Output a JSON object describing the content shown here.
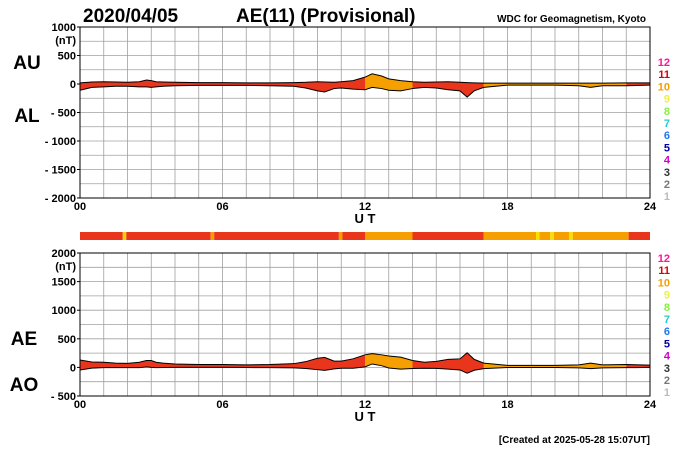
{
  "header": {
    "date": "2020/04/05",
    "title": "AE(11) (Provisional)",
    "source": "WDC for Geomagnetism, Kyoto"
  },
  "footer": {
    "created": "[Created at 2025-05-28 15:07UT]"
  },
  "legend": {
    "labels": [
      "12",
      "11",
      "10",
      "9",
      "8",
      "7",
      "6",
      "5",
      "4",
      "3",
      "2",
      "1"
    ],
    "colors": [
      "#ff1493",
      "#e00000",
      "#f5a000",
      "#eeee44",
      "#88ee44",
      "#22cccc",
      "#2277ee",
      "#0000aa",
      "#cc00cc",
      "#333333",
      "#777777",
      "#bbbbbb"
    ]
  },
  "status_bar": {
    "segments": [
      {
        "from": 0,
        "to": 1.8,
        "color": "#e8351b"
      },
      {
        "from": 1.8,
        "to": 1.95,
        "color": "#f5d000"
      },
      {
        "from": 1.95,
        "to": 5.5,
        "color": "#e8351b"
      },
      {
        "from": 5.5,
        "to": 5.65,
        "color": "#f5a000"
      },
      {
        "from": 5.65,
        "to": 10.9,
        "color": "#e8351b"
      },
      {
        "from": 10.9,
        "to": 11.05,
        "color": "#f5a000"
      },
      {
        "from": 11.05,
        "to": 12.0,
        "color": "#e8351b"
      },
      {
        "from": 12.0,
        "to": 14.0,
        "color": "#f5a000"
      },
      {
        "from": 14.0,
        "to": 17.0,
        "color": "#e8351b"
      },
      {
        "from": 17.0,
        "to": 19.2,
        "color": "#f5a000"
      },
      {
        "from": 19.2,
        "to": 19.35,
        "color": "#f5e000"
      },
      {
        "from": 19.35,
        "to": 19.8,
        "color": "#f5a000"
      },
      {
        "from": 19.8,
        "to": 19.95,
        "color": "#f5e000"
      },
      {
        "from": 19.95,
        "to": 20.6,
        "color": "#f5a000"
      },
      {
        "from": 20.6,
        "to": 20.75,
        "color": "#f5e000"
      },
      {
        "from": 20.75,
        "to": 23.1,
        "color": "#f5a000"
      },
      {
        "from": 23.1,
        "to": 24.0,
        "color": "#e8351b"
      }
    ]
  },
  "chart_data": [
    {
      "type": "area",
      "upper_label": "AU",
      "lower_label": "AL",
      "unit": "(nT)",
      "xlabel": "U T",
      "xlim": [
        0,
        24
      ],
      "xticks": [
        0,
        6,
        12,
        18,
        24
      ],
      "xtick_labels": [
        "00",
        "06",
        "12",
        "18",
        "24"
      ],
      "ylim": [
        -2000,
        1000
      ],
      "yticks": [
        1000,
        500,
        0,
        -500,
        -1000,
        -1500,
        -2000
      ],
      "ytick_labels": [
        "1000",
        "500",
        "0",
        "- 500",
        "- 1000",
        "- 1500",
        "- 2000"
      ],
      "grid": true,
      "fill_segments": [
        {
          "from": 0,
          "to": 12,
          "color": "#e8351b"
        },
        {
          "from": 12,
          "to": 14,
          "color": "#f5a000"
        },
        {
          "from": 14,
          "to": 17,
          "color": "#e8351b"
        },
        {
          "from": 17,
          "to": 23,
          "color": "#f5a000"
        },
        {
          "from": 23,
          "to": 24,
          "color": "#e8351b"
        }
      ],
      "x": [
        0,
        0.5,
        1,
        1.5,
        2,
        2.5,
        2.8,
        3,
        3.2,
        3.5,
        4,
        5,
        6,
        7,
        8,
        9,
        9.5,
        10,
        10.3,
        10.7,
        11,
        11.5,
        12,
        12.3,
        12.7,
        13,
        13.5,
        14,
        14.5,
        15,
        15.5,
        16,
        16.3,
        16.6,
        17,
        18,
        19,
        20,
        21,
        21.5,
        22,
        23,
        24
      ],
      "au": [
        20,
        35,
        40,
        35,
        30,
        40,
        70,
        60,
        40,
        35,
        30,
        25,
        25,
        20,
        20,
        25,
        30,
        40,
        35,
        30,
        40,
        60,
        120,
        180,
        140,
        90,
        60,
        40,
        30,
        35,
        40,
        30,
        25,
        20,
        15,
        15,
        15,
        15,
        15,
        15,
        15,
        20,
        20
      ],
      "al": [
        -110,
        -60,
        -50,
        -40,
        -40,
        -50,
        -50,
        -60,
        -50,
        -40,
        -30,
        -25,
        -25,
        -25,
        -30,
        -40,
        -70,
        -120,
        -140,
        -80,
        -70,
        -90,
        -100,
        -60,
        -80,
        -110,
        -120,
        -80,
        -60,
        -70,
        -100,
        -120,
        -230,
        -120,
        -60,
        -20,
        -20,
        -20,
        -30,
        -60,
        -30,
        -30,
        -20
      ]
    },
    {
      "type": "area",
      "upper_label": "AE",
      "lower_label": "AO",
      "unit": "(nT)",
      "xlabel": "U T",
      "xlim": [
        0,
        24
      ],
      "xticks": [
        0,
        6,
        12,
        18,
        24
      ],
      "xtick_labels": [
        "00",
        "06",
        "12",
        "18",
        "24"
      ],
      "ylim": [
        -500,
        2000
      ],
      "yticks": [
        2000,
        1500,
        1000,
        500,
        0,
        -500
      ],
      "ytick_labels": [
        "2000",
        "1500",
        "1000",
        "500",
        "0",
        "- 500"
      ],
      "grid": true,
      "fill_segments": [
        {
          "from": 0,
          "to": 12,
          "color": "#e8351b"
        },
        {
          "from": 12,
          "to": 14,
          "color": "#f5a000"
        },
        {
          "from": 14,
          "to": 17,
          "color": "#e8351b"
        },
        {
          "from": 17,
          "to": 23,
          "color": "#f5a000"
        },
        {
          "from": 23,
          "to": 24,
          "color": "#e8351b"
        }
      ],
      "x": [
        0,
        0.5,
        1,
        1.5,
        2,
        2.5,
        2.8,
        3,
        3.2,
        3.5,
        4,
        5,
        6,
        7,
        8,
        9,
        9.5,
        10,
        10.3,
        10.7,
        11,
        11.5,
        12,
        12.3,
        12.7,
        13,
        13.5,
        14,
        14.5,
        15,
        15.5,
        16,
        16.3,
        16.6,
        17,
        18,
        19,
        20,
        21,
        21.5,
        22,
        23,
        24
      ],
      "ae": [
        130,
        95,
        90,
        75,
        70,
        90,
        120,
        120,
        90,
        75,
        60,
        50,
        50,
        45,
        50,
        65,
        100,
        160,
        175,
        110,
        110,
        150,
        220,
        240,
        220,
        200,
        180,
        120,
        90,
        105,
        140,
        150,
        255,
        140,
        75,
        35,
        35,
        35,
        45,
        75,
        45,
        50,
        40
      ],
      "ao": [
        -45,
        -12,
        -5,
        -2,
        -5,
        -5,
        10,
        0,
        -5,
        -2,
        0,
        0,
        0,
        -2,
        -5,
        -8,
        -20,
        -40,
        -52,
        -25,
        -15,
        -15,
        10,
        60,
        30,
        -10,
        -30,
        -20,
        -15,
        -18,
        -30,
        -45,
        -102,
        -50,
        -22,
        -2,
        -2,
        -2,
        -8,
        -22,
        -8,
        -5,
        0
      ]
    }
  ]
}
